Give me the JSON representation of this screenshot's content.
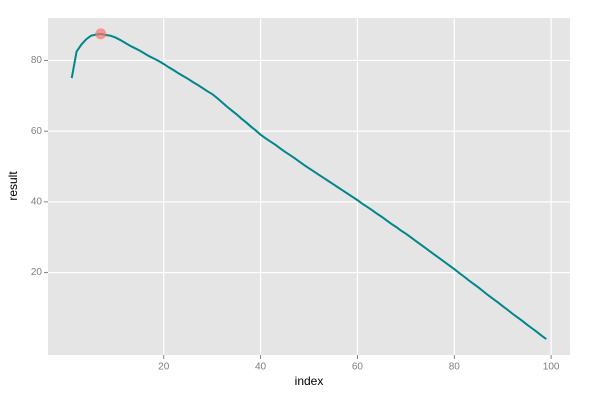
{
  "chart_data": {
    "type": "line",
    "x_label": "index",
    "y_label": "result",
    "x": [
      1,
      2,
      3,
      4,
      5,
      6,
      7,
      8,
      9,
      10,
      11,
      12,
      13,
      14,
      15,
      16,
      17,
      18,
      19,
      20,
      21,
      22,
      23,
      24,
      25,
      26,
      27,
      28,
      29,
      30,
      31,
      32,
      33,
      34,
      35,
      36,
      37,
      38,
      39,
      40,
      41,
      42,
      43,
      44,
      45,
      46,
      47,
      48,
      49,
      50,
      51,
      52,
      53,
      54,
      55,
      56,
      57,
      58,
      59,
      60,
      61,
      62,
      63,
      64,
      65,
      66,
      67,
      68,
      69,
      70,
      71,
      72,
      73,
      74,
      75,
      76,
      77,
      78,
      79,
      80,
      81,
      82,
      83,
      84,
      85,
      86,
      87,
      88,
      89,
      90,
      91,
      92,
      93,
      94,
      95,
      96,
      97,
      98,
      99
    ],
    "values": [
      75,
      82.5,
      84.5,
      86,
      87,
      87.3,
      87.5,
      87.2,
      87,
      86.5,
      85.8,
      85,
      84.2,
      83.5,
      82.8,
      82,
      81.2,
      80.5,
      79.8,
      79,
      78.1,
      77.3,
      76.4,
      75.6,
      74.8,
      73.9,
      73.1,
      72.2,
      71.3,
      70.5,
      69.4,
      68.2,
      67,
      65.9,
      64.8,
      63.6,
      62.5,
      61.3,
      60.2,
      59,
      58,
      57.1,
      56.2,
      55.2,
      54.2,
      53.3,
      52.4,
      51.4,
      50.4,
      49.5,
      48.6,
      47.7,
      46.8,
      45.9,
      45,
      44.1,
      43.2,
      42.3,
      41.4,
      40.5,
      39.5,
      38.6,
      37.7,
      36.7,
      35.8,
      34.8,
      33.8,
      32.9,
      31.9,
      31,
      30,
      29,
      28,
      27,
      26,
      25,
      24,
      23,
      22,
      21,
      19.9,
      18.9,
      17.8,
      16.8,
      15.8,
      14.7,
      13.6,
      12.6,
      11.6,
      10.5,
      9.5,
      8.4,
      7.4,
      6.4,
      5.3,
      4.3,
      3.3,
      2.2,
      1.2
    ],
    "color": "#00868b",
    "highlight": {
      "x": 7,
      "y": 87.5,
      "color": "#f8766d"
    },
    "xlim": [
      -3.9,
      103.9
    ],
    "ylim": [
      -3.3,
      92
    ],
    "xticks": [
      20,
      40,
      60,
      80,
      100
    ],
    "yticks": [
      20,
      40,
      60,
      80
    ],
    "grid": true
  }
}
